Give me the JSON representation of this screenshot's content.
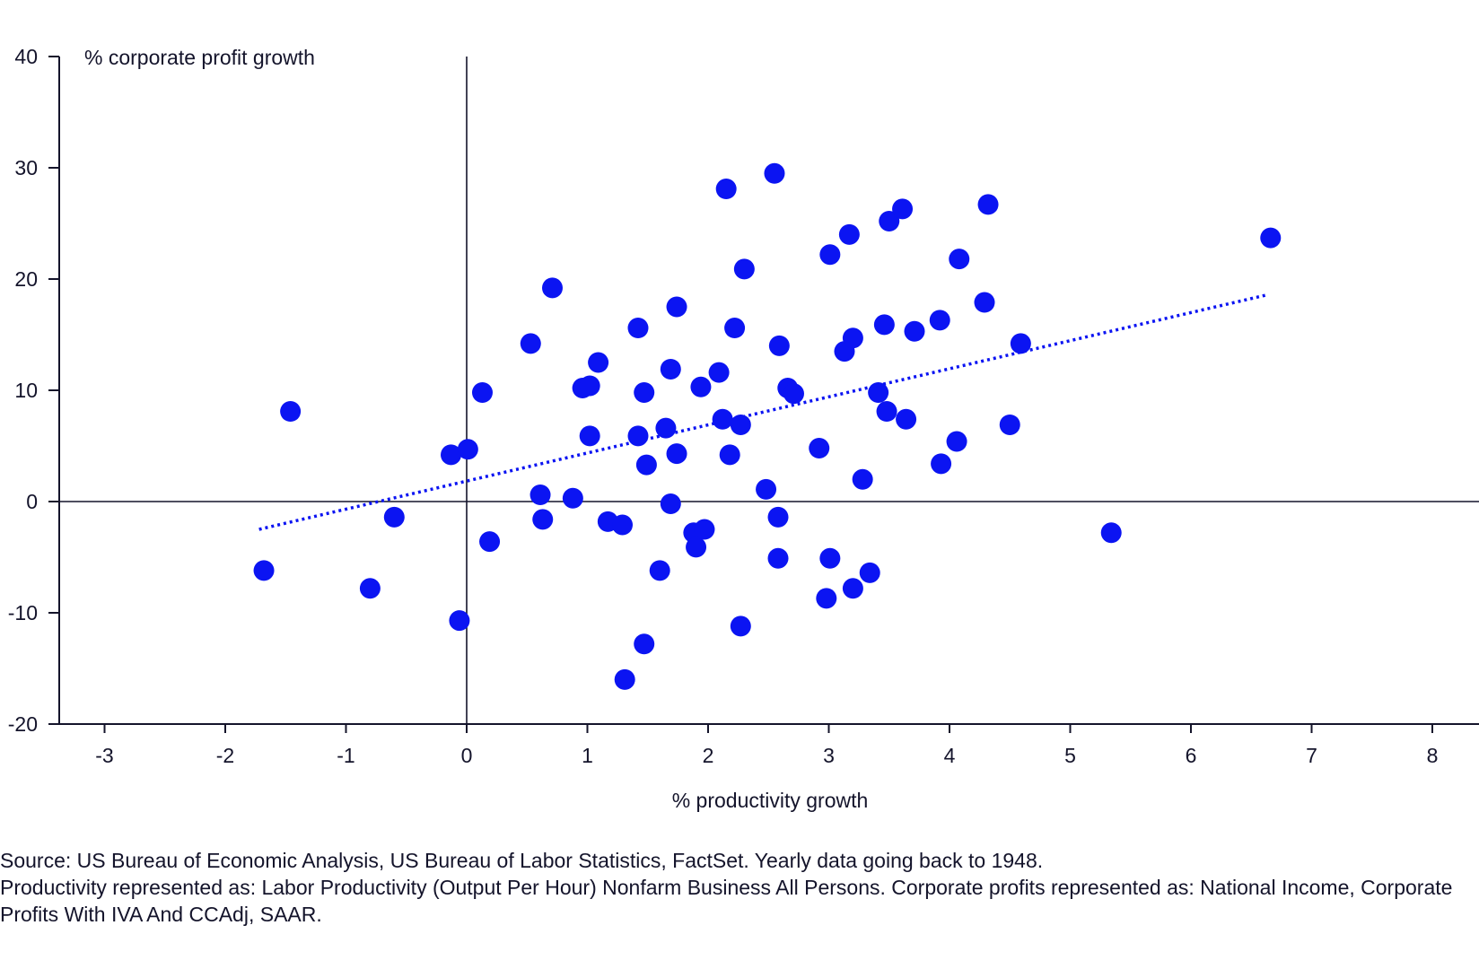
{
  "chart_data": {
    "type": "scatter",
    "title": "",
    "ylabel": "% corporate profit growth",
    "xlabel": "% productivity growth",
    "xlim": [
      -3.4,
      8.8
    ],
    "ylim": [
      -20,
      40
    ],
    "xticks": [
      -3,
      -2,
      -1,
      0,
      1,
      2,
      3,
      4,
      5,
      6,
      7,
      8
    ],
    "yticks": [
      -20,
      -10,
      0,
      10,
      20,
      30,
      40
    ],
    "grid": false,
    "colors": {
      "point": "#0b14f2",
      "axis": "#14142b"
    },
    "points": [
      [
        -1.46,
        8.1
      ],
      [
        -1.68,
        -6.2
      ],
      [
        -0.8,
        -7.8
      ],
      [
        -0.6,
        -1.4
      ],
      [
        -0.13,
        4.2
      ],
      [
        0.01,
        4.7
      ],
      [
        -0.06,
        -10.7
      ],
      [
        0.13,
        9.8
      ],
      [
        0.19,
        -3.6
      ],
      [
        0.53,
        14.2
      ],
      [
        0.71,
        19.2
      ],
      [
        0.61,
        0.6
      ],
      [
        0.63,
        -1.6
      ],
      [
        0.88,
        0.3
      ],
      [
        0.96,
        10.2
      ],
      [
        1.02,
        10.4
      ],
      [
        1.02,
        5.9
      ],
      [
        1.09,
        12.5
      ],
      [
        1.17,
        -1.8
      ],
      [
        1.29,
        -2.1
      ],
      [
        1.31,
        -16.0
      ],
      [
        1.42,
        15.6
      ],
      [
        1.42,
        5.9
      ],
      [
        1.47,
        9.8
      ],
      [
        1.49,
        3.3
      ],
      [
        1.47,
        -12.8
      ],
      [
        1.6,
        -6.2
      ],
      [
        1.65,
        6.6
      ],
      [
        1.69,
        11.9
      ],
      [
        1.69,
        -0.2
      ],
      [
        1.74,
        17.5
      ],
      [
        1.74,
        4.3
      ],
      [
        1.88,
        -2.8
      ],
      [
        1.9,
        -4.1
      ],
      [
        1.97,
        -2.5
      ],
      [
        1.94,
        10.3
      ],
      [
        2.09,
        11.6
      ],
      [
        2.12,
        7.4
      ],
      [
        2.15,
        28.1
      ],
      [
        2.18,
        4.2
      ],
      [
        2.22,
        15.6
      ],
      [
        2.27,
        6.9
      ],
      [
        2.27,
        -11.2
      ],
      [
        2.3,
        20.9
      ],
      [
        2.48,
        1.1
      ],
      [
        2.55,
        29.5
      ],
      [
        2.58,
        -1.4
      ],
      [
        2.58,
        -5.1
      ],
      [
        2.59,
        14.0
      ],
      [
        2.66,
        10.2
      ],
      [
        2.71,
        9.7
      ],
      [
        2.92,
        4.8
      ],
      [
        2.98,
        -8.7
      ],
      [
        3.01,
        22.2
      ],
      [
        3.01,
        -5.1
      ],
      [
        3.13,
        13.5
      ],
      [
        3.17,
        24.0
      ],
      [
        3.2,
        14.7
      ],
      [
        3.2,
        -7.8
      ],
      [
        3.28,
        2.0
      ],
      [
        3.34,
        -6.4
      ],
      [
        3.41,
        9.8
      ],
      [
        3.46,
        15.9
      ],
      [
        3.48,
        8.1
      ],
      [
        3.5,
        25.2
      ],
      [
        3.61,
        26.3
      ],
      [
        3.64,
        7.4
      ],
      [
        3.71,
        15.3
      ],
      [
        3.92,
        16.3
      ],
      [
        3.93,
        3.4
      ],
      [
        4.06,
        5.4
      ],
      [
        4.08,
        21.8
      ],
      [
        4.29,
        17.9
      ],
      [
        4.32,
        26.7
      ],
      [
        4.5,
        6.9
      ],
      [
        4.59,
        14.2
      ],
      [
        5.34,
        -2.8
      ],
      [
        6.66,
        23.7
      ]
    ],
    "trendline": {
      "style": "dotted",
      "from": [
        -1.72,
        -2.5
      ],
      "to": [
        6.64,
        18.6
      ]
    }
  },
  "source": {
    "line1": "Source: US Bureau of Economic Analysis, US Bureau of Labor Statistics, FactSet. Yearly data going back to 1948.",
    "line2": "Productivity represented as: Labor Productivity (Output Per Hour) Nonfarm Business All Persons. Corporate profits represented as: National Income, Corporate Profits With IVA And CCAdj, SAAR."
  }
}
